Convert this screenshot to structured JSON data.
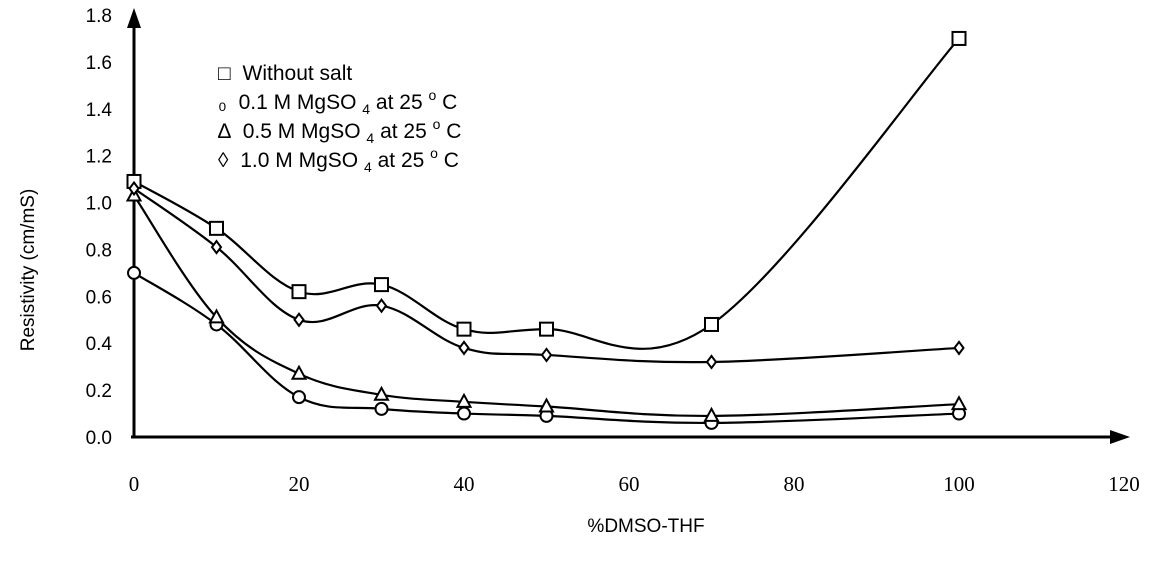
{
  "chart_data": {
    "type": "line",
    "xlabel": "%DMSO-THF",
    "ylabel": "Resistivity (cm/mS)",
    "xlim": [
      0,
      120
    ],
    "ylim": [
      0,
      1.8
    ],
    "xticks": [
      "0",
      "20",
      "40",
      "60",
      "80",
      "100",
      "120"
    ],
    "yticks": [
      "0.0",
      "0.2",
      "0.4",
      "0.6",
      "0.8",
      "1.0",
      "1.2",
      "1.4",
      "1.6",
      "1.8"
    ],
    "x": [
      0,
      10,
      20,
      30,
      40,
      50,
      70,
      100
    ],
    "legend_position": "top-left",
    "series": [
      {
        "name": "Without salt",
        "marker": "square",
        "values": [
          1.09,
          0.89,
          0.62,
          0.65,
          0.46,
          0.46,
          0.48,
          1.7
        ]
      },
      {
        "name": "0.1 M MgSO4 at 25oC",
        "marker": "circle",
        "values": [
          0.7,
          0.48,
          0.17,
          0.12,
          0.1,
          0.09,
          0.06,
          0.1
        ]
      },
      {
        "name": "0.5 M MgSO4 at 25oC",
        "marker": "triangle",
        "values": [
          1.03,
          0.51,
          0.27,
          0.18,
          0.15,
          0.13,
          0.09,
          0.14
        ]
      },
      {
        "name": "1.0 M MgSO4 at 25oC",
        "marker": "diamond",
        "values": [
          1.06,
          0.81,
          0.5,
          0.56,
          0.38,
          0.35,
          0.32,
          0.38
        ]
      }
    ]
  },
  "legend": [
    {
      "symbol": "□",
      "pre": "Without salt",
      "sub": "",
      "mid": "",
      "sup": "",
      "post": ""
    },
    {
      "symbol": "₀",
      "pre": "0.1 M MgSO",
      "sub": "4",
      "mid": " at 25",
      "sup": "o",
      "post": "C"
    },
    {
      "symbol": "∆",
      "pre": "0.5 M MgSO",
      "sub": "4",
      "mid": " at 25",
      "sup": "o",
      "post": "C"
    },
    {
      "symbol": "◊",
      "pre": "1.0 M MgSO",
      "sub": "4",
      "mid": " at 25",
      "sup": "o",
      "post": "C"
    }
  ]
}
